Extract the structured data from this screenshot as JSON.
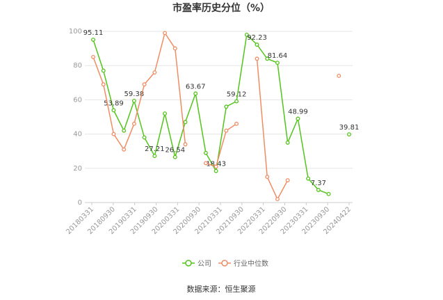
{
  "chart_data": {
    "type": "line",
    "title": "市盈率历史分位（%）",
    "ylim": [
      0,
      100
    ],
    "yticks": [
      0,
      20,
      40,
      60,
      80,
      100
    ],
    "xticks": [
      "20180331",
      "20180930",
      "20190331",
      "20190930",
      "20200331",
      "20200930",
      "20210331",
      "20210930",
      "20220331",
      "20220930",
      "20230331",
      "20230930",
      "20240422"
    ],
    "x": [
      0,
      1,
      2,
      3,
      4,
      5,
      6,
      7,
      8,
      9,
      10,
      11,
      12,
      13,
      14,
      15,
      16,
      17,
      18,
      19,
      20,
      21,
      22,
      23,
      24,
      25
    ],
    "grid": true,
    "legend_position": "bottom",
    "series": [
      {
        "name": "公司",
        "color": "#52c41a",
        "values": [
          95.11,
          77,
          53.89,
          42,
          59.38,
          38,
          27.21,
          52,
          26.54,
          47,
          63.67,
          29,
          18.43,
          56,
          59.12,
          98,
          92.23,
          84,
          81.64,
          35,
          48.99,
          14,
          7.37,
          5,
          null,
          39.81
        ],
        "labels": {
          "0": "95.11",
          "2": "53.89",
          "4": "59.38",
          "6": "27.21",
          "8": "26.54",
          "10": "63.67",
          "12": "18.43",
          "14": "59.12",
          "16": "92.23",
          "18": "81.64",
          "20": "48.99",
          "22": "7.37",
          "25": "39.81"
        }
      },
      {
        "name": "行业中位数",
        "color": "#f08c64",
        "values": [
          85,
          69,
          40,
          31,
          46,
          69,
          76,
          99,
          90,
          34,
          null,
          23,
          21,
          42,
          46,
          null,
          84,
          15,
          2,
          13,
          null,
          null,
          null,
          null,
          74,
          null
        ]
      }
    ]
  },
  "source": "数据来源：恒生聚源"
}
